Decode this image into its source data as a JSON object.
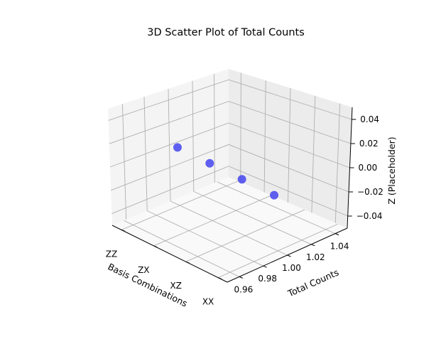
{
  "chart_data": {
    "type": "scatter",
    "title": "3D Scatter Plot of Total Counts",
    "xlabel": "Basis Combinations",
    "ylabel": "Total Counts",
    "zlabel": "Z (Placeholder)",
    "x_categories": [
      "ZZ",
      "ZX",
      "XZ",
      "XX"
    ],
    "y_ticks": [
      "0.96",
      "0.98",
      "1.00",
      "1.02",
      "1.04"
    ],
    "z_ticks": [
      "0.04",
      "0.02",
      "0.00",
      "−0.02",
      "−0.04"
    ],
    "ylim": [
      0.95,
      1.05
    ],
    "zlim": [
      -0.05,
      0.05
    ],
    "grid": true,
    "series": [
      {
        "color": "#4444ee",
        "points": [
          {
            "x": "ZZ",
            "y": 1.0,
            "z": 0.0
          },
          {
            "x": "ZX",
            "y": 1.0,
            "z": 0.0
          },
          {
            "x": "XZ",
            "y": 1.0,
            "z": 0.0
          },
          {
            "x": "XX",
            "y": 1.0,
            "z": 0.0
          }
        ]
      }
    ]
  }
}
